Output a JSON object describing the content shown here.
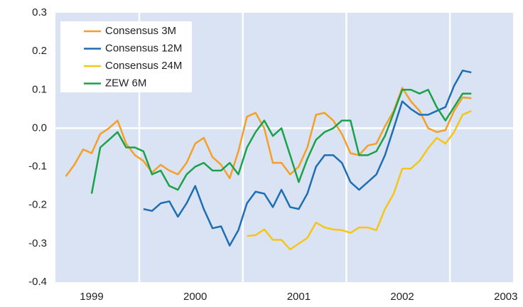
{
  "chart_data": {
    "type": "line",
    "x": [
      1998.75,
      1998.833,
      1998.917,
      1999.0,
      1999.083,
      1999.167,
      1999.25,
      1999.333,
      1999.417,
      1999.5,
      1999.583,
      1999.667,
      1999.75,
      1999.833,
      1999.917,
      2000.0,
      2000.083,
      2000.167,
      2000.25,
      2000.333,
      2000.417,
      2000.5,
      2000.583,
      2000.667,
      2000.75,
      2000.833,
      2000.917,
      2001.0,
      2001.083,
      2001.167,
      2001.25,
      2001.333,
      2001.417,
      2001.5,
      2001.583,
      2001.667,
      2001.75,
      2001.833,
      2001.917,
      2002.0,
      2002.083,
      2002.167,
      2002.25,
      2002.333,
      2002.417,
      2002.5,
      2002.583,
      2002.667
    ],
    "series": [
      {
        "name": "Consensus 3M",
        "color": "#f4a028",
        "values": [
          -0.125,
          -0.095,
          -0.055,
          -0.065,
          -0.015,
          0.0,
          0.02,
          -0.04,
          -0.07,
          -0.085,
          -0.115,
          -0.095,
          -0.11,
          -0.12,
          -0.09,
          -0.04,
          -0.025,
          -0.075,
          -0.095,
          -0.13,
          -0.06,
          0.03,
          0.04,
          0.0,
          -0.09,
          -0.09,
          -0.12,
          -0.1,
          -0.05,
          0.035,
          0.04,
          0.02,
          -0.015,
          -0.065,
          -0.07,
          -0.045,
          -0.04,
          0.005,
          0.045,
          0.105,
          0.07,
          0.045,
          0.0,
          -0.01,
          -0.005,
          0.045,
          0.08,
          0.078
        ]
      },
      {
        "name": "Consensus 12M",
        "color": "#1f6eb4",
        "values": [
          null,
          null,
          null,
          null,
          null,
          null,
          null,
          null,
          null,
          -0.21,
          -0.215,
          -0.195,
          -0.19,
          -0.23,
          -0.195,
          -0.15,
          -0.21,
          -0.26,
          -0.255,
          -0.305,
          -0.265,
          -0.195,
          -0.165,
          -0.17,
          -0.205,
          -0.16,
          -0.205,
          -0.21,
          -0.17,
          -0.1,
          -0.07,
          -0.07,
          -0.09,
          -0.14,
          -0.16,
          -0.14,
          -0.12,
          -0.07,
          0.0,
          0.07,
          0.05,
          0.035,
          0.035,
          0.045,
          0.055,
          0.11,
          0.15,
          0.145
        ]
      },
      {
        "name": "Consensus 24M",
        "color": "#f5c518",
        "values": [
          null,
          null,
          null,
          null,
          null,
          null,
          null,
          null,
          null,
          null,
          null,
          null,
          null,
          null,
          null,
          null,
          null,
          null,
          null,
          null,
          null,
          -0.28,
          -0.278,
          -0.263,
          -0.29,
          -0.29,
          -0.315,
          -0.3,
          -0.285,
          -0.245,
          -0.258,
          -0.263,
          -0.265,
          -0.272,
          -0.258,
          -0.258,
          -0.265,
          -0.21,
          -0.17,
          -0.105,
          -0.105,
          -0.085,
          -0.052,
          -0.025,
          -0.04,
          -0.01,
          0.035,
          0.045
        ]
      },
      {
        "name": "ZEW 6M",
        "color": "#1aa24a",
        "values": [
          null,
          null,
          null,
          -0.17,
          -0.05,
          -0.03,
          -0.01,
          -0.05,
          -0.05,
          -0.06,
          -0.12,
          -0.11,
          -0.15,
          -0.16,
          -0.12,
          -0.1,
          -0.09,
          -0.11,
          -0.11,
          -0.09,
          -0.12,
          -0.05,
          -0.01,
          0.02,
          -0.02,
          0.0,
          -0.07,
          -0.14,
          -0.08,
          -0.03,
          -0.01,
          0.0,
          0.02,
          0.02,
          -0.07,
          -0.07,
          -0.06,
          -0.02,
          0.04,
          0.1,
          0.1,
          0.09,
          0.1,
          0.055,
          0.02,
          0.055,
          0.09,
          0.09
        ]
      }
    ],
    "xlim": [
      1998.65,
      2003.07
    ],
    "xticks": [
      1999,
      2000,
      2001,
      2002,
      2003
    ],
    "xgrid": [
      1999.46,
      2000.46,
      2001.46,
      2002.46
    ],
    "ylim": [
      -0.4,
      0.3
    ],
    "yticks": [
      0.3,
      0.2,
      0.1,
      {
        "value": 0,
        "label": "0.0"
      },
      -0.1,
      -0.2,
      -0.3,
      -0.4
    ],
    "zero_line": true,
    "legend": "upper-left",
    "background": "#d9e3f3"
  }
}
